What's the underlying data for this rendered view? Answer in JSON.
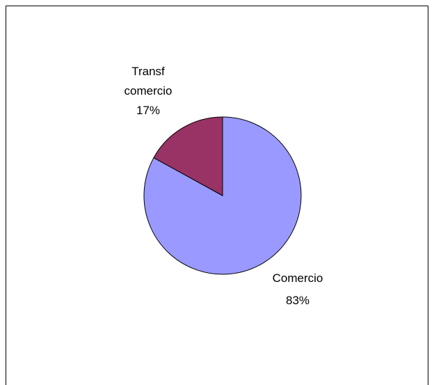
{
  "chart_data": {
    "type": "pie",
    "title": "",
    "slices": [
      {
        "category": "Comercio",
        "percent_label": "83%",
        "value": 83,
        "color": "#9999ff"
      },
      {
        "category": "Transf comercio",
        "category_lines": [
          "Transf",
          "comercio"
        ],
        "percent_label": "17%",
        "value": 17,
        "color": "#993366"
      }
    ],
    "start_angle_deg": 0,
    "direction": "clockwise",
    "legend": "none",
    "border_color": "#000000",
    "background": "#ffffff"
  }
}
